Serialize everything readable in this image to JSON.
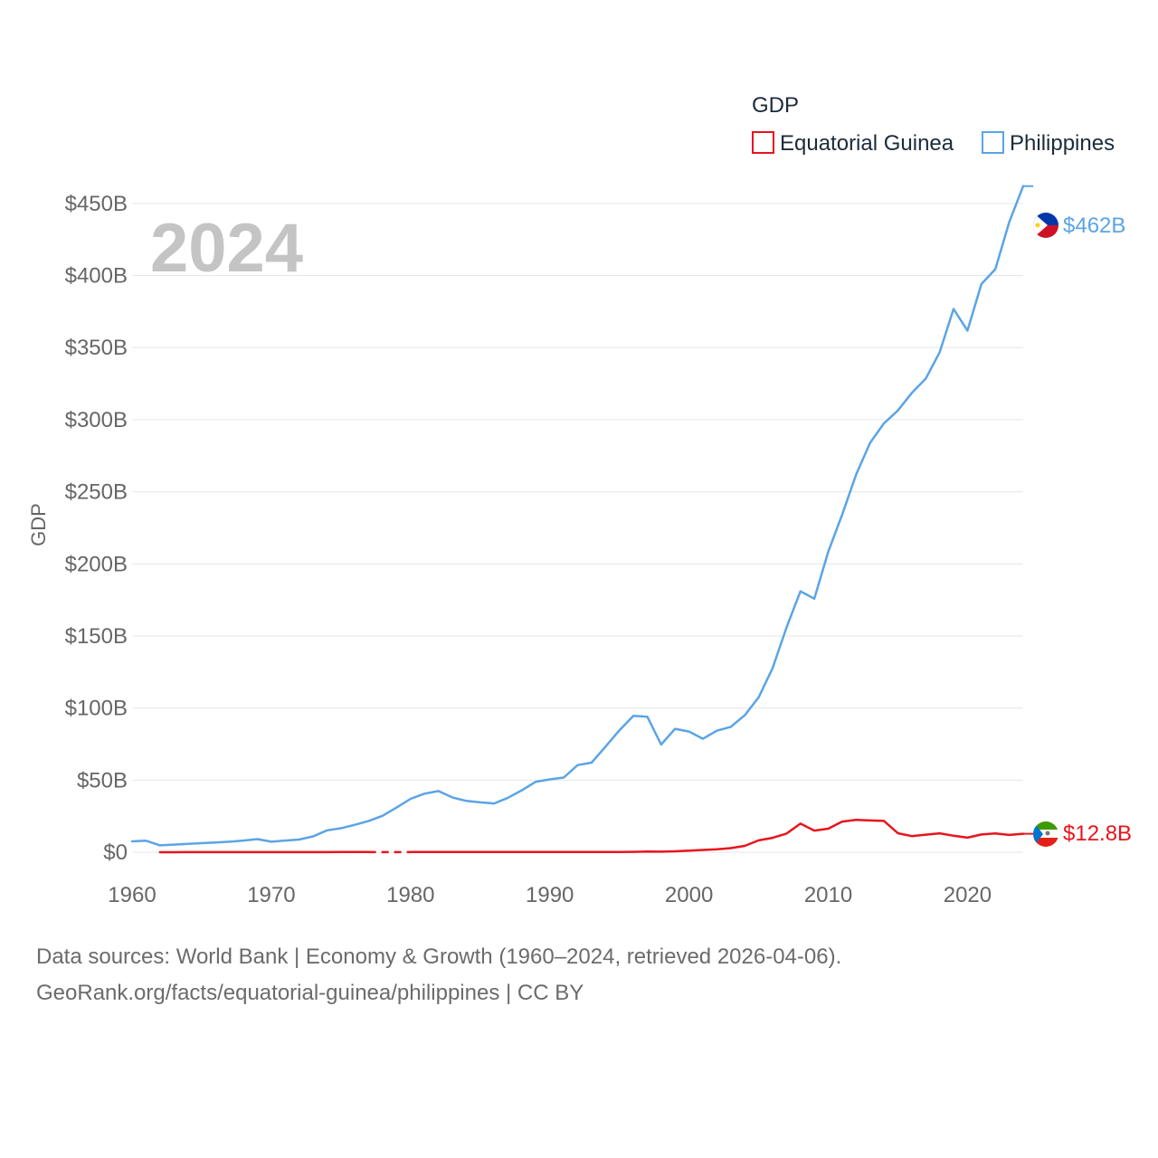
{
  "chart_data": {
    "type": "line",
    "title": "",
    "year_watermark": "2024",
    "legend_title": "GDP",
    "ylabel": "GDP",
    "xlabel": "",
    "xlim": [
      1960,
      2024
    ],
    "ylim": [
      0,
      470
    ],
    "y_unit": "billions USD",
    "x_ticks": [
      1960,
      1970,
      1980,
      1990,
      2000,
      2010,
      2020
    ],
    "y_ticks": [
      {
        "value": 0,
        "label": "$0"
      },
      {
        "value": 50,
        "label": "$50B"
      },
      {
        "value": 100,
        "label": "$100B"
      },
      {
        "value": 150,
        "label": "$150B"
      },
      {
        "value": 200,
        "label": "$200B"
      },
      {
        "value": 250,
        "label": "$250B"
      },
      {
        "value": 300,
        "label": "$300B"
      },
      {
        "value": 350,
        "label": "$350B"
      },
      {
        "value": 400,
        "label": "$400B"
      },
      {
        "value": 450,
        "label": "$450B"
      }
    ],
    "grid": true,
    "legend_position": "top-right",
    "series": [
      {
        "name": "Equatorial Guinea",
        "color": "#e8141c",
        "end_label": "$12.8B",
        "flag_icon": "equatorial-guinea-flag-icon",
        "x": [
          1962,
          1963,
          1964,
          1965,
          1966,
          1967,
          1968,
          1969,
          1970,
          1971,
          1972,
          1973,
          1974,
          1975,
          1976,
          1977,
          1978,
          1979,
          1980,
          1981,
          1982,
          1983,
          1984,
          1985,
          1986,
          1987,
          1988,
          1989,
          1990,
          1991,
          1992,
          1993,
          1994,
          1995,
          1996,
          1997,
          1998,
          1999,
          2000,
          2001,
          2002,
          2003,
          2004,
          2005,
          2006,
          2007,
          2008,
          2009,
          2010,
          2011,
          2012,
          2013,
          2014,
          2015,
          2016,
          2017,
          2018,
          2019,
          2020,
          2021,
          2022,
          2023,
          2024
        ],
        "values": [
          0.03,
          0.03,
          0.04,
          0.04,
          0.04,
          0.05,
          0.05,
          0.06,
          0.06,
          0.07,
          0.07,
          0.08,
          0.09,
          0.1,
          0.1,
          0.1,
          null,
          null,
          0.1,
          0.1,
          0.1,
          0.1,
          0.1,
          0.1,
          0.1,
          0.1,
          0.1,
          0.1,
          0.13,
          0.13,
          0.14,
          0.15,
          0.16,
          0.16,
          0.28,
          0.5,
          0.4,
          0.6,
          1.05,
          1.6,
          2.0,
          2.8,
          4.4,
          8.2,
          10.0,
          12.9,
          19.8,
          15.0,
          16.3,
          21.3,
          22.4,
          22.0,
          21.7,
          13.2,
          11.2,
          12.2,
          13.1,
          11.4,
          10.1,
          12.3,
          13.0,
          12.0,
          12.8
        ]
      },
      {
        "name": "Philippines",
        "color": "#5ba4e5",
        "end_label": "$462B",
        "flag_icon": "philippines-flag-icon",
        "x": [
          1960,
          1961,
          1962,
          1963,
          1964,
          1965,
          1966,
          1967,
          1968,
          1969,
          1970,
          1971,
          1972,
          1973,
          1974,
          1975,
          1976,
          1977,
          1978,
          1979,
          1980,
          1981,
          1982,
          1983,
          1984,
          1985,
          1986,
          1987,
          1988,
          1989,
          1990,
          1991,
          1992,
          1993,
          1994,
          1995,
          1996,
          1997,
          1998,
          1999,
          2000,
          2001,
          2002,
          2003,
          2004,
          2005,
          2006,
          2007,
          2008,
          2009,
          2010,
          2011,
          2012,
          2013,
          2014,
          2015,
          2016,
          2017,
          2018,
          2019,
          2020,
          2021,
          2022,
          2023,
          2024
        ],
        "values": [
          7.5,
          8.0,
          4.8,
          5.3,
          5.8,
          6.3,
          6.8,
          7.3,
          8.1,
          9.1,
          7.3,
          8.1,
          8.8,
          11.0,
          15.2,
          16.6,
          19.0,
          21.7,
          25.3,
          31.0,
          37.0,
          40.6,
          42.4,
          38.0,
          35.6,
          34.6,
          33.8,
          37.8,
          43.0,
          48.9,
          50.5,
          51.8,
          60.4,
          62.1,
          73.2,
          84.6,
          94.6,
          94.0,
          74.7,
          85.6,
          83.7,
          78.7,
          84.3,
          87.0,
          95.0,
          107.4,
          127.7,
          155.9,
          181.0,
          175.8,
          208.4,
          234.2,
          261.9,
          283.9,
          297.5,
          306.4,
          318.6,
          328.5,
          346.8,
          376.8,
          361.8,
          394.1,
          404.4,
          437.1,
          462.0
        ]
      }
    ]
  },
  "source": {
    "line1": "Data sources: World Bank | Economy & Growth (1960–2024, retrieved 2026-04-06).",
    "line2": "GeoRank.org/facts/equatorial-guinea/philippines | CC BY"
  }
}
